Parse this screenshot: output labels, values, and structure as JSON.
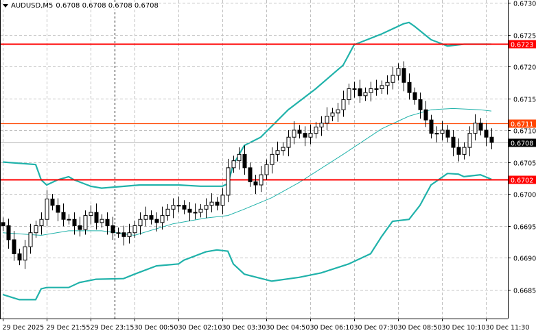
{
  "header": {
    "symbol_timeframe": "AUDUSD,M5",
    "ohlc": "0.6708 0.6708 0.6708 0.6708"
  },
  "colors": {
    "band": "#20b2aa",
    "support_resistance": "#ff0000",
    "level_orange": "#ff4500",
    "current": "#000000",
    "grid": "#c0c0c0"
  },
  "chart_data": {
    "type": "candlestick",
    "title": "AUDUSD,M5",
    "ylim": [
      0.6681,
      0.6731
    ],
    "y_ticks": [
      "0.6730",
      "0.6725",
      "0.6720",
      "0.6715",
      "0.6710",
      "0.6705",
      "0.6700",
      "0.6695",
      "0.6690",
      "0.6685"
    ],
    "x_ticks": [
      "29 Dec 2025",
      "29 Dec 21:55",
      "29 Dec 23:15",
      "30 Dec 00:50",
      "30 Dec 02:10",
      "30 Dec 03:30",
      "30 Dec 04:50",
      "30 Dec 06:10",
      "30 Dec 07:30",
      "30 Dec 08:50",
      "30 Dec 10:10",
      "30 Dec 11:30"
    ],
    "closes": [
      0.6695,
      0.66928,
      0.66906,
      0.66896,
      0.66917,
      0.66939,
      0.6695,
      0.6696,
      0.66992,
      0.66982,
      0.66971,
      0.6696,
      0.6696,
      0.6695,
      0.66944,
      0.66966,
      0.66971,
      0.66955,
      0.6696,
      0.6695,
      0.66939,
      0.66939,
      0.66933,
      0.66939,
      0.6695,
      0.6696,
      0.66966,
      0.6696,
      0.66955,
      0.66966,
      0.66976,
      0.66982,
      0.66982,
      0.66976,
      0.66971,
      0.66971,
      0.66976,
      0.66982,
      0.66987,
      0.66982,
      0.66998,
      0.67041,
      0.67052,
      0.67062,
      0.67041,
      0.67019,
      0.67014,
      0.6703,
      0.67046,
      0.67062,
      0.67068,
      0.67073,
      0.67089,
      0.671,
      0.67095,
      0.67089,
      0.67095,
      0.67105,
      0.67111,
      0.67122,
      0.67127,
      0.67132,
      0.67148,
      0.67165,
      0.67165,
      0.67154,
      0.67159,
      0.67165,
      0.67165,
      0.6717,
      0.67175,
      0.67186,
      0.67197,
      0.67175,
      0.67159,
      0.67148,
      0.67132,
      0.67116,
      0.67095,
      0.67095,
      0.671,
      0.67089,
      0.67073,
      0.67062,
      0.67073,
      0.67095,
      0.67111,
      0.671,
      0.67089,
      0.67081
    ],
    "bands": {
      "upper": [
        [
          0,
          0.6705
        ],
        [
          6,
          0.67046
        ],
        [
          7,
          0.67022
        ],
        [
          8,
          0.67014
        ],
        [
          10,
          0.67022
        ],
        [
          12,
          0.67027
        ],
        [
          13,
          0.67022
        ],
        [
          16,
          0.67012
        ],
        [
          18,
          0.67009
        ],
        [
          25,
          0.67014
        ],
        [
          32,
          0.67014
        ],
        [
          36,
          0.67012
        ],
        [
          40,
          0.67012
        ],
        [
          41,
          0.67016
        ],
        [
          42,
          0.67046
        ],
        [
          44,
          0.67076
        ],
        [
          47,
          0.67089
        ],
        [
          52,
          0.67132
        ],
        [
          57,
          0.67165
        ],
        [
          62,
          0.67202
        ],
        [
          64,
          0.67234
        ],
        [
          69,
          0.67251
        ],
        [
          73,
          0.67267
        ],
        [
          74,
          0.67269
        ],
        [
          75,
          0.67263
        ],
        [
          78,
          0.67242
        ],
        [
          81,
          0.67232
        ],
        [
          84,
          0.67235
        ],
        [
          89,
          0.67235
        ]
      ],
      "middle": [
        [
          0,
          0.66939
        ],
        [
          7,
          0.66935
        ],
        [
          12,
          0.66942
        ],
        [
          18,
          0.66942
        ],
        [
          24,
          0.66935
        ],
        [
          31,
          0.66953
        ],
        [
          37,
          0.66962
        ],
        [
          41,
          0.66966
        ],
        [
          44,
          0.66976
        ],
        [
          49,
          0.66994
        ],
        [
          54,
          0.67018
        ],
        [
          62,
          0.67062
        ],
        [
          69,
          0.67102
        ],
        [
          74,
          0.67122
        ],
        [
          78,
          0.67132
        ],
        [
          82,
          0.67134
        ],
        [
          87,
          0.67132
        ],
        [
          89,
          0.6713
        ]
      ],
      "lower": [
        [
          0,
          0.66842
        ],
        [
          3,
          0.66834
        ],
        [
          6,
          0.66834
        ],
        [
          7,
          0.66851
        ],
        [
          8,
          0.66853
        ],
        [
          12,
          0.66853
        ],
        [
          14,
          0.66861
        ],
        [
          17,
          0.66866
        ],
        [
          22,
          0.66867
        ],
        [
          24,
          0.66874
        ],
        [
          28,
          0.66887
        ],
        [
          32,
          0.6689
        ],
        [
          33,
          0.66896
        ],
        [
          37,
          0.66909
        ],
        [
          39,
          0.66912
        ],
        [
          41,
          0.6691
        ],
        [
          42,
          0.6689
        ],
        [
          44,
          0.66874
        ],
        [
          49,
          0.66863
        ],
        [
          54,
          0.66869
        ],
        [
          58,
          0.66876
        ],
        [
          63,
          0.6689
        ],
        [
          67,
          0.66906
        ],
        [
          69,
          0.66933
        ],
        [
          71,
          0.66957
        ],
        [
          74,
          0.6696
        ],
        [
          76,
          0.66982
        ],
        [
          78,
          0.67014
        ],
        [
          81,
          0.67032
        ],
        [
          83,
          0.67031
        ],
        [
          84,
          0.67027
        ],
        [
          87,
          0.6703
        ],
        [
          89,
          0.67023
        ]
      ]
    },
    "levels": [
      {
        "name": "resistance",
        "value": 0.67235,
        "label": "0.6723",
        "color": "#ff0000"
      },
      {
        "name": "pivot",
        "value": 0.67111,
        "label": "0.6711",
        "color": "#ff4500"
      },
      {
        "name": "support",
        "value": 0.67023,
        "label": "0.6702",
        "color": "#ff0000"
      },
      {
        "name": "current-price",
        "value": 0.67081,
        "label": "0.6708",
        "color": "#000000"
      }
    ]
  }
}
